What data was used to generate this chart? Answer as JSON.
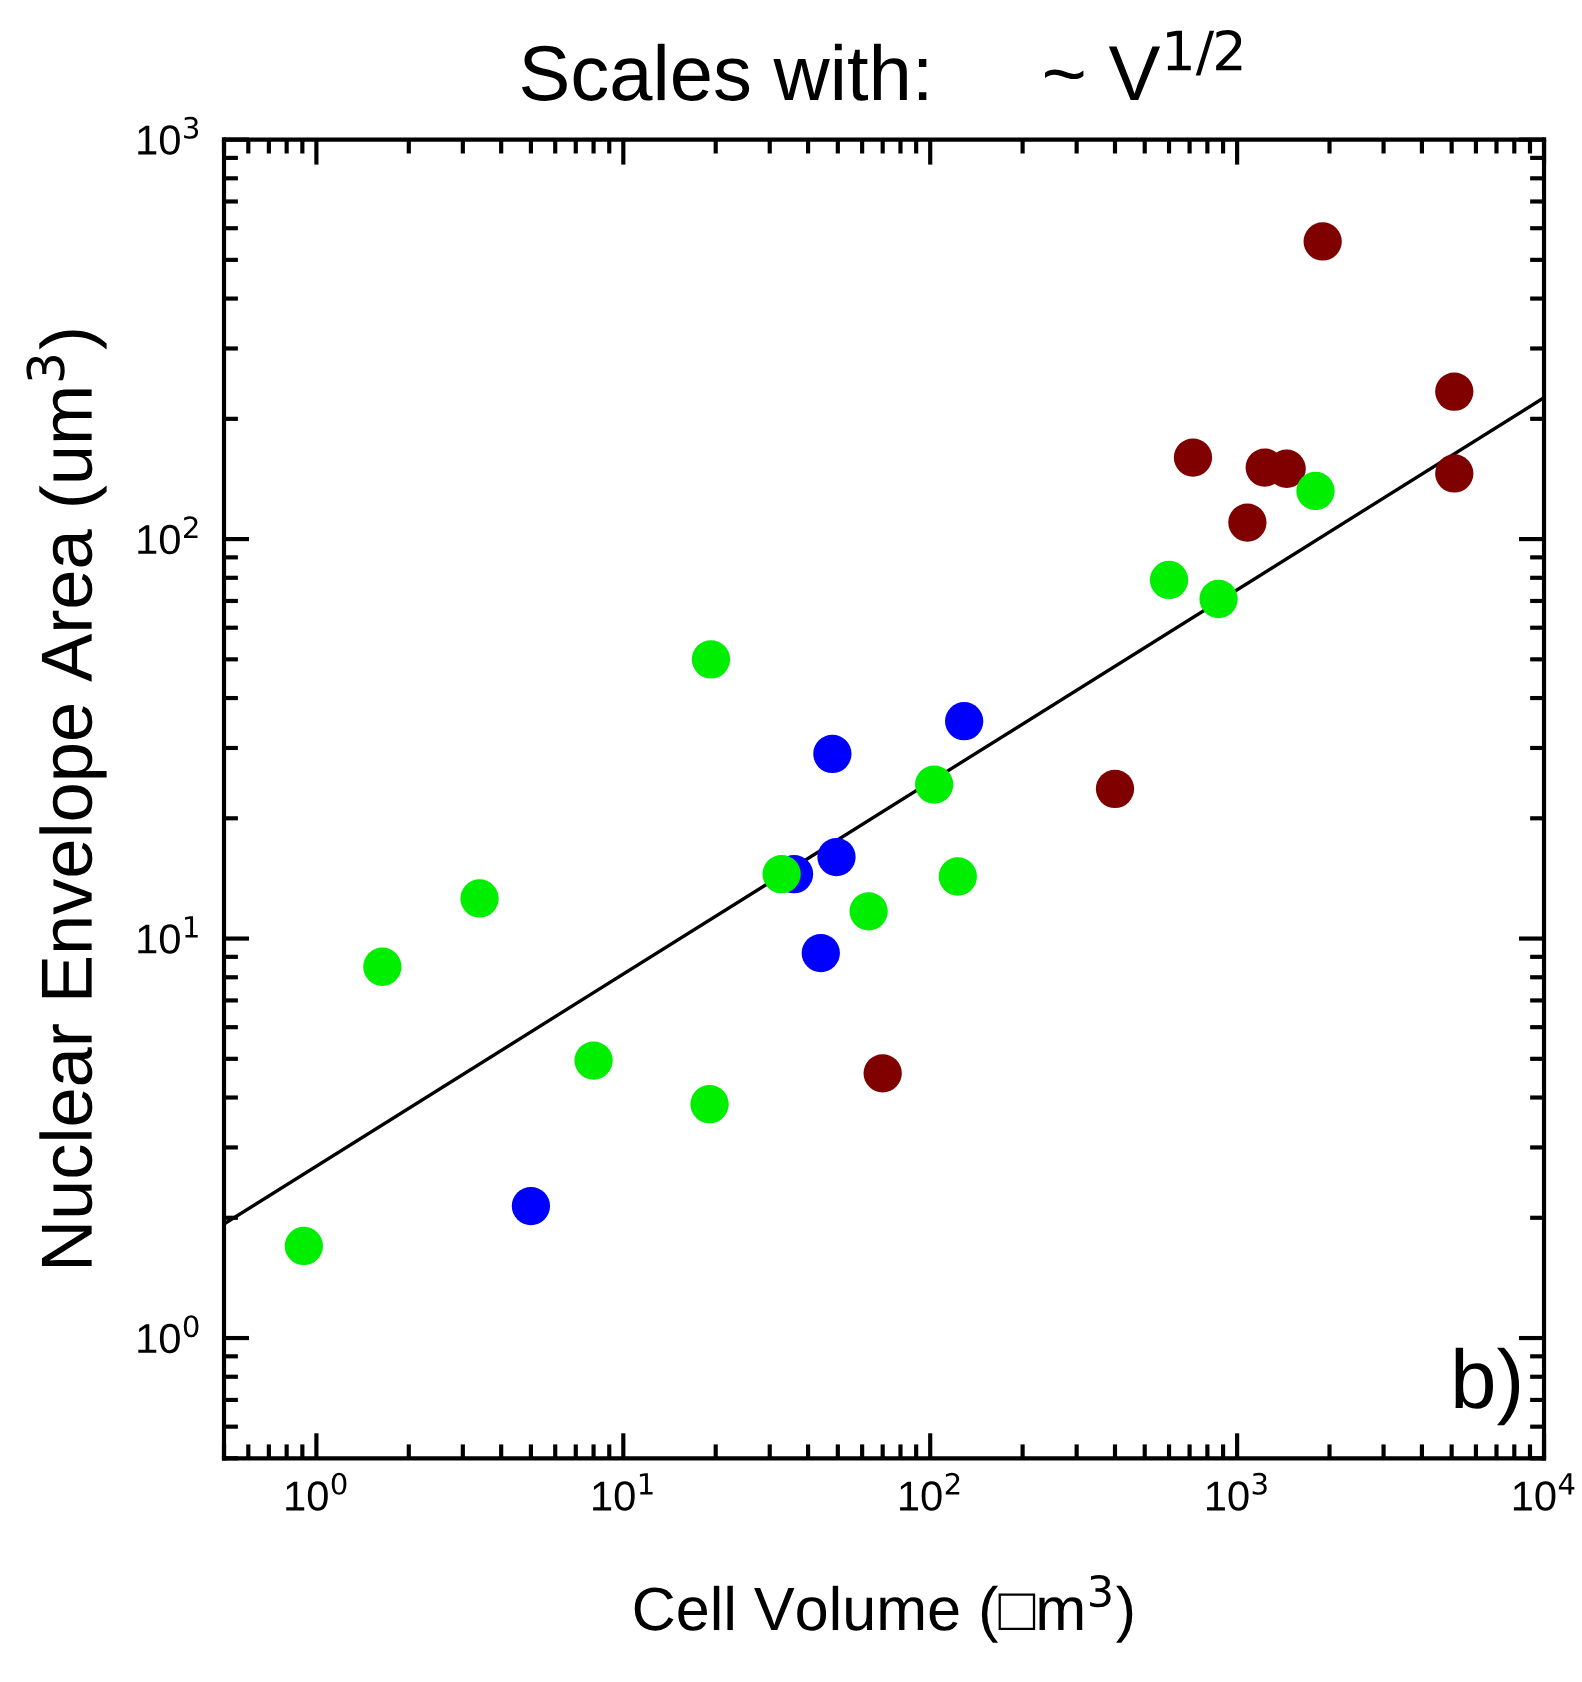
{
  "chart_data": {
    "type": "scatter",
    "title": "Scales with:     ~ V$^{1/2}$",
    "xlabel": "Cell Volume (□m$^{3}$)",
    "ylabel": "Nuclear Envelope Area (um$^{3}$)",
    "log": "xy",
    "marker": "circle",
    "grid": false,
    "xlim": [
      0.5,
      10000
    ],
    "ylim": [
      0.5,
      1000
    ],
    "xticks": [
      {
        "value": 1,
        "label": "10$^{0}$"
      },
      {
        "value": 10,
        "label": "10$^{1}$"
      },
      {
        "value": 100,
        "label": "10$^{2}$"
      },
      {
        "value": 1000,
        "label": "10$^{3}$"
      },
      {
        "value": 10000,
        "label": "10$^{4}$"
      }
    ],
    "yticks": [
      {
        "value": 1,
        "label": "10$^{0}$"
      },
      {
        "value": 10,
        "label": "10$^{1}$"
      },
      {
        "value": 100,
        "label": "10$^{2}$"
      },
      {
        "value": 1000,
        "label": "10$^{3}$"
      }
    ],
    "annotations": [
      "b)"
    ],
    "series": [
      {
        "type": "line",
        "color": "#000000",
        "marker": "none",
        "x": [
          0.5,
          10000
        ],
        "values": [
          1.93,
          226
        ]
      },
      {
        "color": "#00ee00",
        "x": [
          0.91,
          1.64,
          3.4,
          8.0,
          19.1,
          19.3,
          32.8,
          63,
          103,
          123,
          600,
          870,
          1800
        ],
        "values": [
          1.7,
          8.5,
          12.6,
          4.95,
          3.85,
          50,
          14.5,
          11.7,
          24.3,
          14.3,
          79,
          70.8,
          132
        ]
      },
      {
        "color": "#0000ff",
        "x": [
          5.0,
          36,
          44,
          48,
          49.5,
          129
        ],
        "values": [
          2.14,
          14.5,
          9.2,
          29,
          16,
          35
        ]
      },
      {
        "color": "#800000",
        "x": [
          70,
          400,
          718,
          1080,
          1230,
          1450,
          1900,
          5100,
          5100
        ],
        "values": [
          4.6,
          23.7,
          160,
          110,
          151,
          150,
          556,
          234,
          146
        ]
      }
    ]
  }
}
